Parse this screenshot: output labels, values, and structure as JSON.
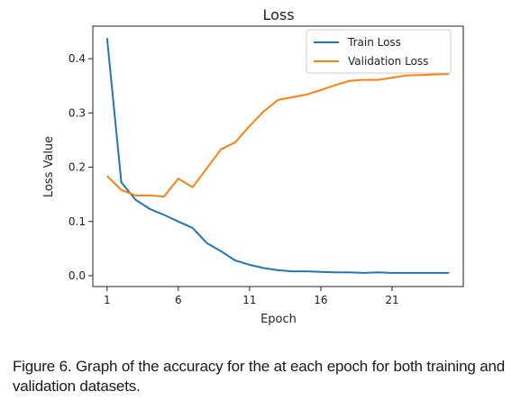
{
  "chart_data": {
    "type": "line",
    "title": "Loss",
    "xlabel": "Epoch",
    "ylabel": "Loss Value",
    "xlim": [
      0,
      26
    ],
    "ylim": [
      -0.02,
      0.46
    ],
    "xticks": [
      1,
      6,
      11,
      16,
      21
    ],
    "yticks": [
      0.0,
      0.1,
      0.2,
      0.3,
      0.4
    ],
    "ytick_labels": [
      "0.0",
      "0.1",
      "0.2",
      "0.3",
      "0.4"
    ],
    "xtick_labels": [
      "1",
      "6",
      "11",
      "16",
      "21"
    ],
    "grid": false,
    "legend_position": "top-right",
    "x": [
      1,
      2,
      3,
      4,
      5,
      6,
      7,
      8,
      9,
      10,
      11,
      12,
      13,
      14,
      15,
      16,
      17,
      18,
      19,
      20,
      21,
      22,
      23,
      24,
      25
    ],
    "series": [
      {
        "name": "Train Loss",
        "color": "#1f77b4",
        "values": [
          0.438,
          0.172,
          0.14,
          0.123,
          0.112,
          0.1,
          0.088,
          0.06,
          0.045,
          0.028,
          0.02,
          0.014,
          0.01,
          0.008,
          0.008,
          0.007,
          0.006,
          0.006,
          0.005,
          0.006,
          0.005,
          0.005,
          0.005,
          0.005,
          0.005
        ]
      },
      {
        "name": "Validation Loss",
        "color": "#ff7f0e",
        "values": [
          0.184,
          0.158,
          0.148,
          0.148,
          0.146,
          0.179,
          0.163,
          0.198,
          0.233,
          0.246,
          0.276,
          0.303,
          0.324,
          0.329,
          0.334,
          0.342,
          0.351,
          0.359,
          0.361,
          0.361,
          0.365,
          0.369,
          0.37,
          0.371,
          0.372
        ]
      }
    ]
  },
  "caption": {
    "label": "Figure 6.",
    "text": " Graph of the accuracy for the at each epoch for both training and validation datasets."
  }
}
